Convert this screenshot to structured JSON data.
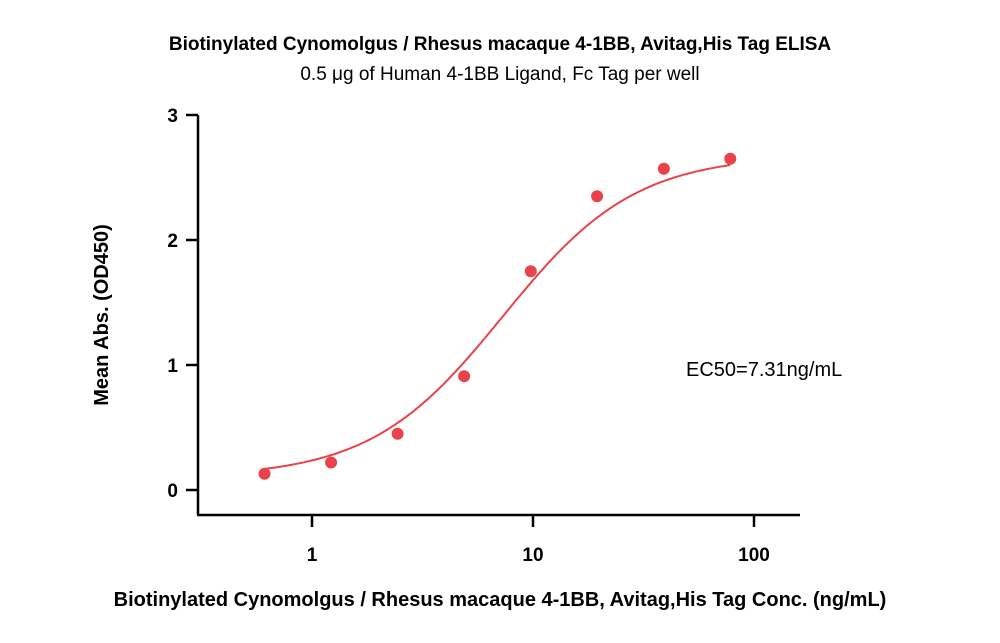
{
  "chart_data": {
    "type": "scatter",
    "title": "Biotinylated Cynomolgus / Rhesus macaque 4-1BB, Avitag,His Tag ELISA",
    "subtitle": "0.5 μg of Human 4-1BB Ligand, Fc Tag per well",
    "xlabel": "Biotinylated Cynomolgus / Rhesus macaque 4-1BB, Avitag,His Tag Conc. (ng/mL)",
    "ylabel": "Mean Abs. (OD450)",
    "x_scale": "log",
    "xlim": [
      0.3,
      200
    ],
    "ylim": [
      0,
      3
    ],
    "x_ticks": [
      1,
      10,
      100
    ],
    "x_tick_labels": [
      "1",
      "10",
      "100"
    ],
    "y_ticks": [
      0,
      1,
      2,
      3
    ],
    "y_tick_labels": [
      "0",
      "1",
      "2",
      "3"
    ],
    "series": [
      {
        "x": [
          0.61,
          1.22,
          2.44,
          4.88,
          9.77,
          19.5,
          39.1,
          78.1
        ],
        "y": [
          0.13,
          0.22,
          0.45,
          0.91,
          1.75,
          2.35,
          2.57,
          2.65
        ],
        "color": "#e8434b",
        "fit": "4PL sigmoid"
      }
    ],
    "annotation": "EC50=7.31ng/mL",
    "grid": false,
    "legend": "none"
  }
}
